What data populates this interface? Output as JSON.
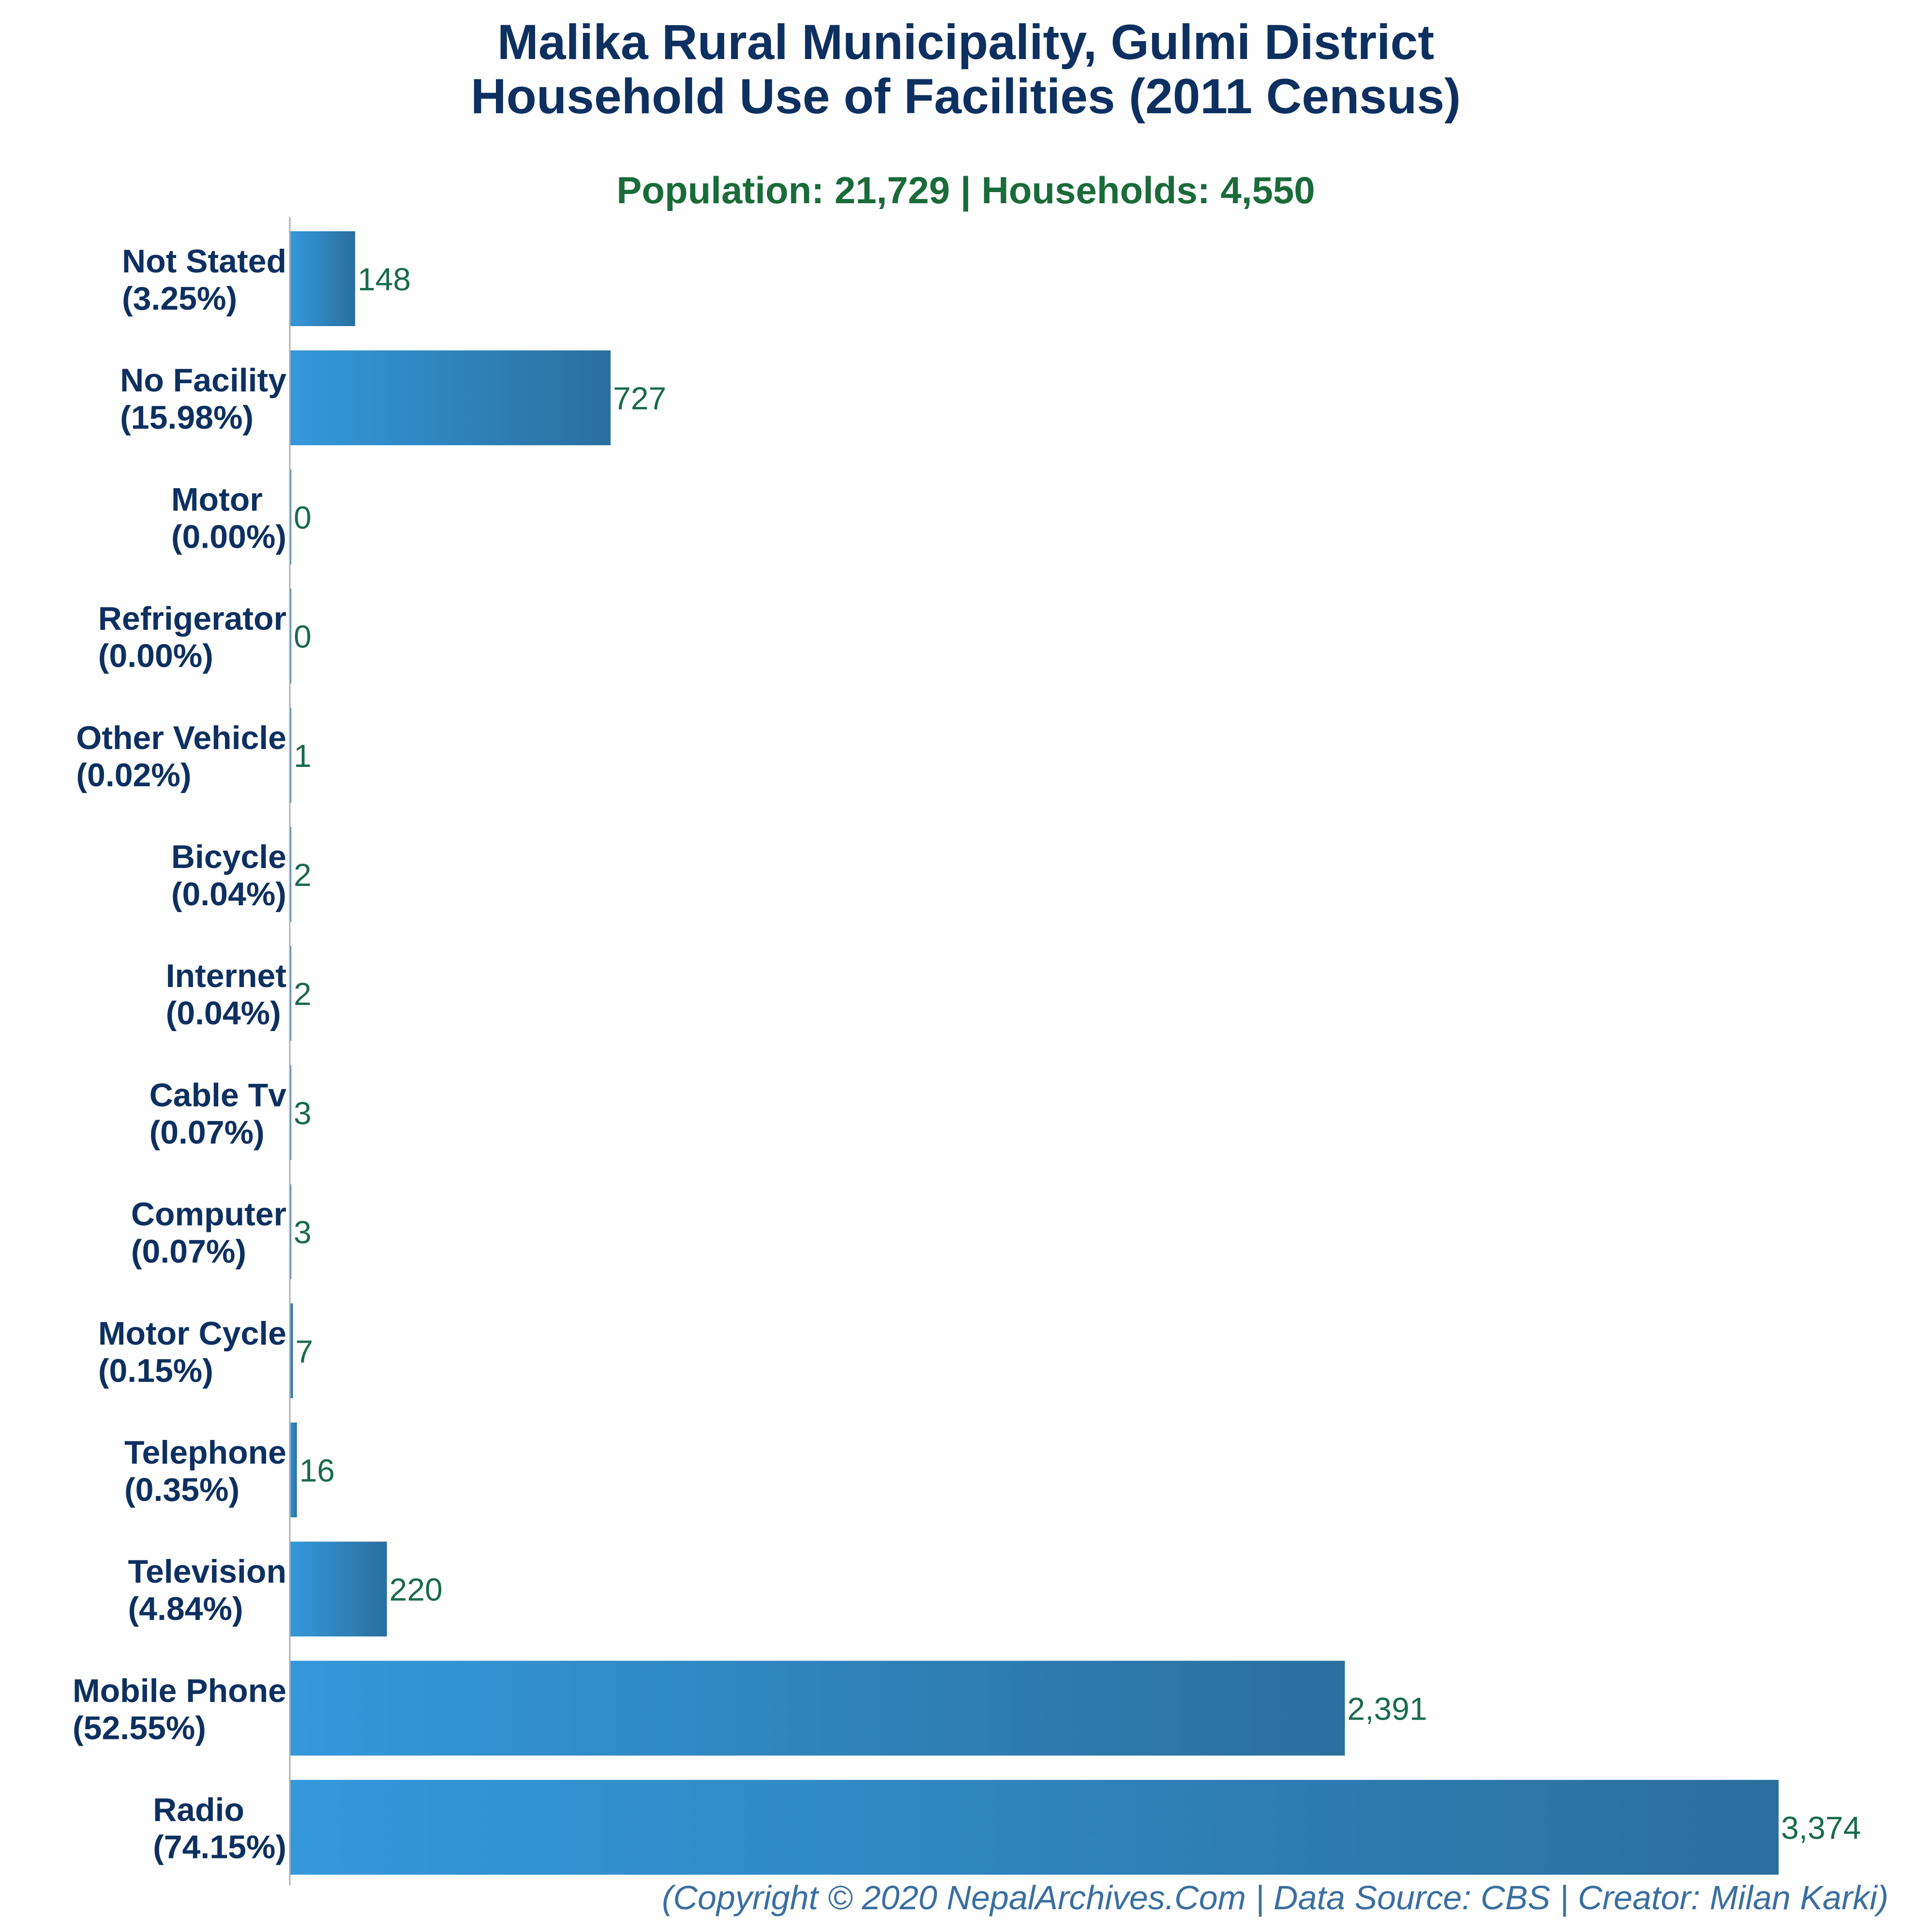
{
  "chart_data": {
    "type": "bar",
    "orientation": "horizontal",
    "title_line1": "Malika Rural Municipality, Gulmi District",
    "title_line2": "Household Use of Facilities (2011 Census)",
    "subtitle": "Population: 21,729 | Households: 4,550",
    "categories": [
      "Not Stated",
      "No Facility",
      "Motor",
      "Refrigerator",
      "Other Vehicle",
      "Bicycle",
      "Internet",
      "Cable Tv",
      "Computer",
      "Motor Cycle",
      "Telephone",
      "Television",
      "Mobile Phone",
      "Radio"
    ],
    "percentages": [
      "(3.25%)",
      "(15.98%)",
      "(0.00%)",
      "(0.00%)",
      "(0.02%)",
      "(0.04%)",
      "(0.04%)",
      "(0.07%)",
      "(0.07%)",
      "(0.15%)",
      "(0.35%)",
      "(4.84%)",
      "(52.55%)",
      "(74.15%)"
    ],
    "values": [
      148,
      727,
      0,
      0,
      1,
      2,
      2,
      3,
      3,
      7,
      16,
      220,
      2391,
      3374
    ],
    "value_labels": [
      "148",
      "727",
      "0",
      "0",
      "1",
      "2",
      "2",
      "3",
      "3",
      "7",
      "16",
      "220",
      "2,391",
      "3,374"
    ],
    "xlim": [
      0,
      3700
    ],
    "grid": false,
    "legend": "none",
    "colors": {
      "bar_light": "#3498db",
      "bar_dark": "#2a6f9e",
      "title": "#0d3060",
      "subtitle": "#1a6b3a",
      "value_text": "#1a6b4a",
      "footer": "#3a6fa0",
      "axis": "#b0b0b0"
    }
  },
  "footer": "(Copyright © 2020 NepalArchives.Com | Data Source: CBS | Creator: Milan Karki)"
}
